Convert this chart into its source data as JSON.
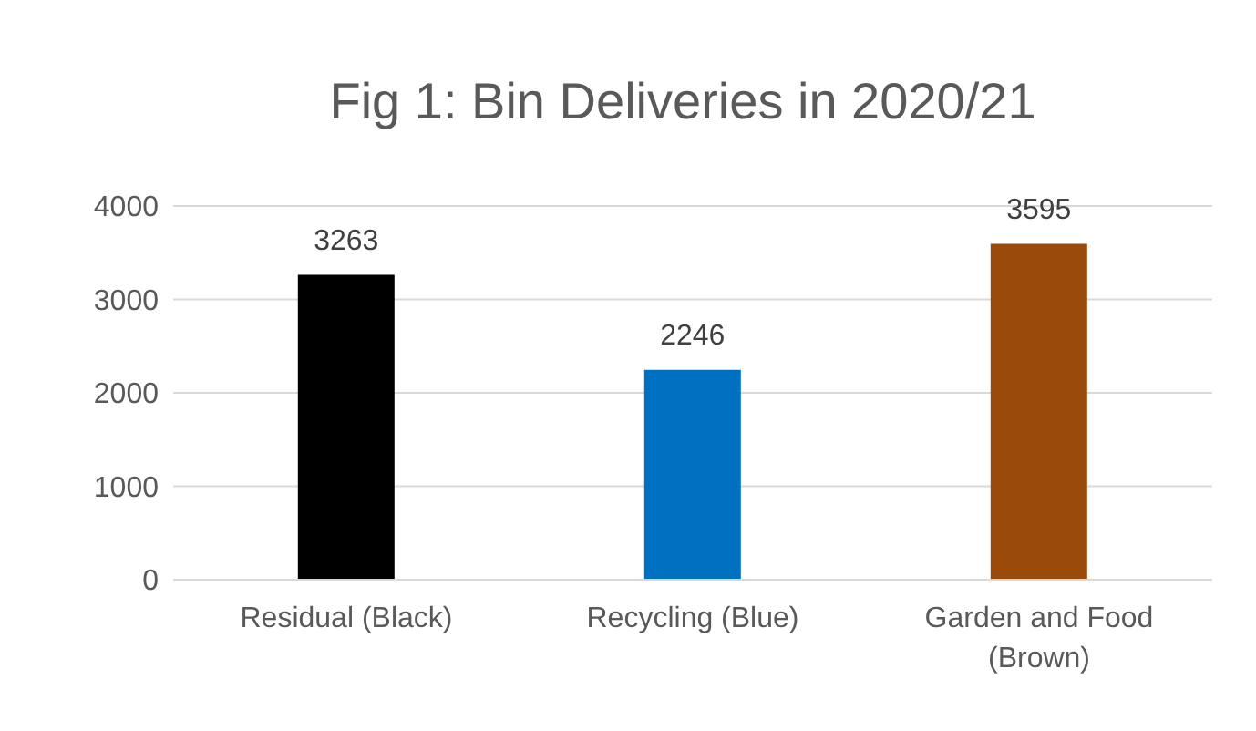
{
  "chart_data": {
    "type": "bar",
    "title": "Fig 1: Bin Deliveries in 2020/21",
    "categories": [
      "Residual (Black)",
      "Recycling (Blue)",
      "Garden and Food (Brown)"
    ],
    "values": [
      3263,
      2246,
      3595
    ],
    "colors": [
      "#000000",
      "#0070c0",
      "#9a4a0a"
    ],
    "ylim": [
      0,
      4000
    ],
    "yticks": [
      0,
      1000,
      2000,
      3000,
      4000
    ],
    "grid": "y",
    "data_labels": true,
    "legend": false
  }
}
